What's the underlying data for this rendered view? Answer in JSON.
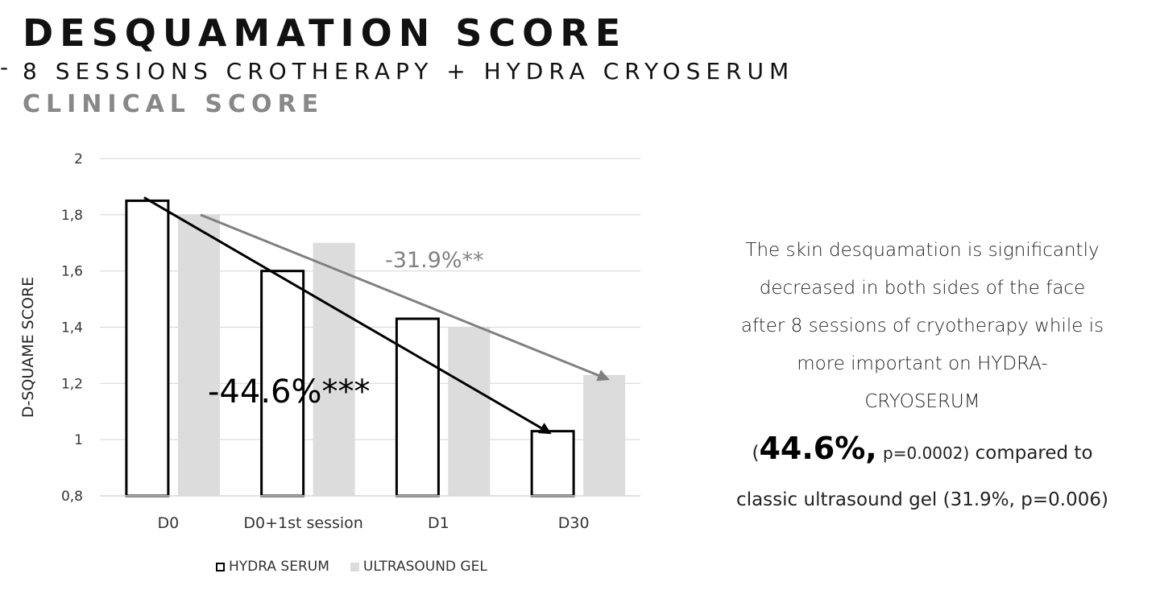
{
  "header": {
    "title": "DESQUAMATION SCORE",
    "subtitle_prefix": "-",
    "subtitle": "8 SESSIONS CROTHERAPY + HYDRA CRYOSERUM",
    "section": "CLINICAL SCORE"
  },
  "chart_data": {
    "type": "bar",
    "categories": [
      "D0",
      "D0+1st session",
      "D1",
      "D30"
    ],
    "series": [
      {
        "name": "HYDRA SERUM",
        "values": [
          1.85,
          1.6,
          1.43,
          1.03
        ],
        "style": "outlined",
        "color": "#000000"
      },
      {
        "name": "ULTRASOUND GEL",
        "values": [
          1.8,
          1.7,
          1.4,
          1.23
        ],
        "style": "filled",
        "color": "#dcdcdc"
      }
    ],
    "ylabel": "D-SQUAME SCORE",
    "xlabel": "",
    "ylim": [
      0.8,
      2.0
    ],
    "yticks": [
      "0,8",
      "1",
      "1,2",
      "1,4",
      "1,6",
      "1,8",
      "2"
    ],
    "ytick_values": [
      0.8,
      1.0,
      1.2,
      1.4,
      1.6,
      1.8,
      2.0
    ],
    "grid": true,
    "legend": "bottom",
    "annotations": [
      {
        "text": "-44.6%***",
        "series": "HYDRA SERUM",
        "from_category": "D0",
        "to_category": "D30",
        "color": "#000000"
      },
      {
        "text": "-31.9%**",
        "series": "ULTRASOUND GEL",
        "from_category": "D0",
        "to_category": "D30",
        "color": "#808080"
      }
    ]
  },
  "legend": {
    "hydra_label": "HYDRA SERUM",
    "gel_label": "ULTRASOUND GEL"
  },
  "note": {
    "line1": "The skin desquamation is significantly",
    "line2": "decreased in both sides of the face",
    "line3": "after 8 sessions of cryotherapy while is",
    "line4": "more important on HYDRA-",
    "line5": "CRYOSERUM",
    "stat_open": "(",
    "stat_value": "44.6%,",
    "stat_p": "p=0.0002)",
    "stat_tail": "compared to",
    "tail": "classic ultrasound gel (31.9%, p=0.006)"
  }
}
